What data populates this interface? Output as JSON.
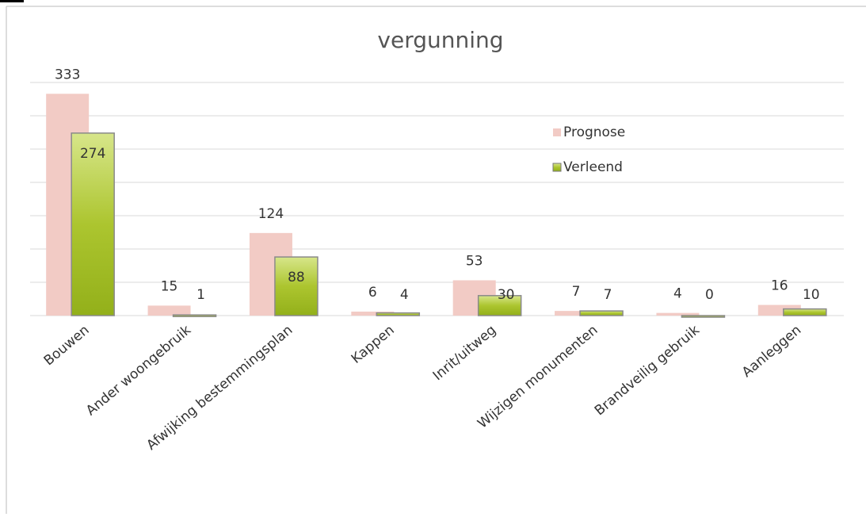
{
  "chart_data": {
    "type": "bar",
    "title": "vergunning",
    "categories": [
      "Bouwen",
      "Ander woongebruik",
      "Afwijking bestemmingsplan",
      "Kappen",
      "Inrit/uitweg",
      "Wijzigen monumenten",
      "Brandveilig gebruik",
      "Aanleggen"
    ],
    "series": [
      {
        "name": "Prognose",
        "color": "#f2cbc5",
        "values": [
          333,
          15,
          124,
          6,
          53,
          7,
          4,
          16
        ]
      },
      {
        "name": "Verleend",
        "color": "#9fbf22",
        "values": [
          274,
          1,
          88,
          4,
          30,
          7,
          0,
          10
        ]
      }
    ],
    "ylim": [
      0,
      350
    ],
    "yticks": [
      0,
      50,
      100,
      150,
      200,
      250,
      300,
      350
    ],
    "grid": true,
    "legend": "right"
  }
}
